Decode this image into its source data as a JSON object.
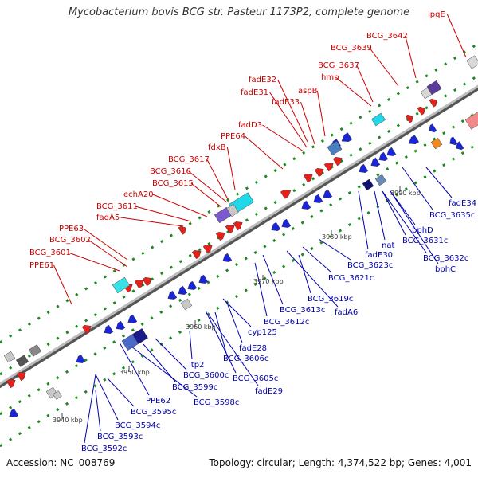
{
  "title": "Mycobacterium bovis BCG str. Pasteur 1173P2, complete genome",
  "footer": {
    "accession": "Accession: NC_008769",
    "stats": "Topology: circular; Length: 4,374,522 bp; Genes: 4,001"
  },
  "colors": {
    "forward": "#e8201a",
    "reverse": "#1a24d8",
    "forward_label": "#cc0000",
    "reverse_label": "#0000aa",
    "backbone": "#808080"
  },
  "scale_labels": [
    "3940 kbp",
    "3950 kbp",
    "3960 kbp",
    "3970 kbp",
    "3980 kbp",
    "3990 kbp"
  ],
  "forward_genes": [
    "PPE61",
    "BCG_3601",
    "BCG_3602",
    "PPE63",
    "fadA5",
    "BCG_3611",
    "echA20",
    "BCG_3615",
    "BCG_3616",
    "BCG_3617",
    "fdxB",
    "PPE64",
    "fadD3",
    "fadE33",
    "fadE31",
    "fadE32",
    "aspB",
    "hmp",
    "BCG_3637",
    "BCG_3639",
    "BCG_3642",
    "lpqE"
  ],
  "reverse_genes": [
    "BCG_3592c",
    "BCG_3593c",
    "BCG_3594c",
    "BCG_3595c",
    "PPE62",
    "BCG_3598c",
    "BCG_3599c",
    "BCG_3600c",
    "ltp2",
    "fadE29",
    "BCG_3605c",
    "BCG_3606c",
    "fadE28",
    "cyp125",
    "BCG_3612c",
    "BCG_3613c",
    "fadA6",
    "BCG_3619c",
    "BCG_3621c",
    "BCG_3623c",
    "fadE30",
    "nat",
    "BCG_3631c",
    "bphD",
    "BCG_3632c",
    "bphC",
    "BCG_3635c",
    "fadE34"
  ]
}
